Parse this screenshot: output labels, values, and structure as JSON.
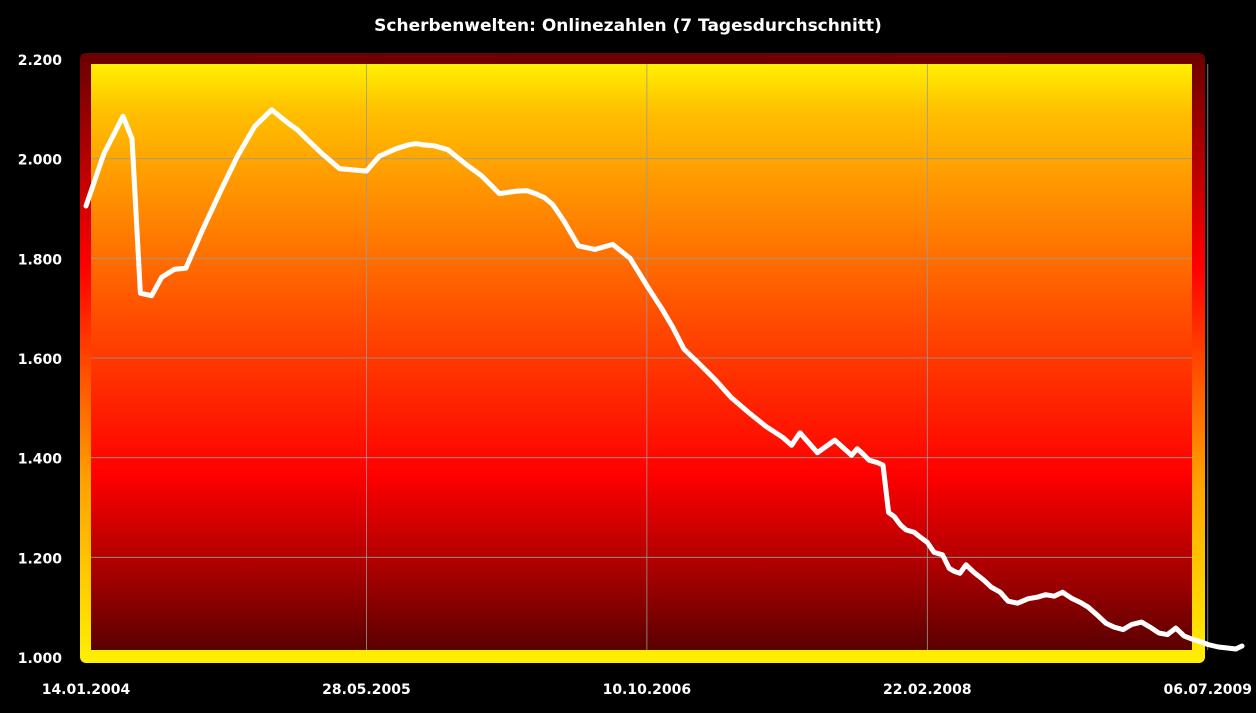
{
  "chart_data": {
    "type": "line",
    "title": "Scherbenwelten: Onlinezahlen (7 Tagesdurchschnitt)",
    "xlabel": "",
    "ylabel": "",
    "ylim": [
      1000,
      2200
    ],
    "y_ticks": [
      {
        "value": 1000,
        "label": "1.000"
      },
      {
        "value": 1200,
        "label": "1.200"
      },
      {
        "value": 1400,
        "label": "1.400"
      },
      {
        "value": 1600,
        "label": "1.600"
      },
      {
        "value": 1800,
        "label": "1.800"
      },
      {
        "value": 2000,
        "label": "2.000"
      },
      {
        "value": 2200,
        "label": "2.200"
      }
    ],
    "xlim": [
      "2004-01-14",
      "2009-09-30"
    ],
    "x_ticks": [
      {
        "value": "2004-01-14",
        "label": "14.01.2004"
      },
      {
        "value": "2005-05-28",
        "label": "28.05.2005"
      },
      {
        "value": "2006-10-10",
        "label": "10.10.2006"
      },
      {
        "value": "2008-02-22",
        "label": "22.02.2008"
      },
      {
        "value": "2009-07-06",
        "label": "06.07.2009"
      }
    ],
    "grid": true,
    "legend": "none",
    "colors": {
      "background": "#000000",
      "line": "#FFFFFF",
      "gradient_edge": "#FFF000",
      "gradient_mid": "#FF0000",
      "gradient_dark": "#5A0000",
      "gridline": "#9A9A9A",
      "text": "#FFFFFF"
    },
    "series": [
      {
        "x": [
          "2004-01-14",
          "2004-02-15",
          "2004-03-20",
          "2004-04-05",
          "2004-04-20",
          "2004-05-10",
          "2004-05-28",
          "2004-06-20",
          "2004-07-10",
          "2004-08-10",
          "2004-09-10",
          "2004-10-10",
          "2004-11-10",
          "2004-12-10",
          "2005-01-10",
          "2005-01-25",
          "2005-02-10",
          "2005-03-10",
          "2005-04-10",
          "2005-05-28",
          "2005-06-20",
          "2005-07-20",
          "2005-08-12",
          "2005-08-25",
          "2005-09-05",
          "2005-09-25",
          "2005-10-20",
          "2005-11-20",
          "2005-12-20",
          "2006-01-20",
          "2006-02-20",
          "2006-03-10",
          "2006-03-25",
          "2006-04-10",
          "2006-04-25",
          "2006-05-15",
          "2006-06-10",
          "2006-07-10",
          "2006-08-10",
          "2006-09-10",
          "2006-10-10",
          "2006-11-05",
          "2006-11-25",
          "2006-12-15",
          "2007-01-10",
          "2007-02-10",
          "2007-03-10",
          "2007-04-10",
          "2007-05-10",
          "2007-06-10",
          "2007-06-25",
          "2007-07-10",
          "2007-08-10",
          "2007-09-10",
          "2007-10-10",
          "2007-10-20",
          "2007-10-30",
          "2007-11-10",
          "2007-11-25",
          "2007-12-05",
          "2007-12-15",
          "2007-12-25",
          "2008-01-05",
          "2008-01-15",
          "2008-01-30",
          "2008-02-10",
          "2008-02-22",
          "2008-03-05",
          "2008-03-20",
          "2008-04-01",
          "2008-04-10",
          "2008-04-20",
          "2008-05-01",
          "2008-05-15",
          "2008-06-01",
          "2008-06-15",
          "2008-07-01",
          "2008-07-15",
          "2008-08-01",
          "2008-08-20",
          "2008-09-05",
          "2008-09-20",
          "2008-10-05",
          "2008-10-20",
          "2008-11-05",
          "2008-11-20",
          "2008-12-05",
          "2008-12-20",
          "2009-01-05",
          "2009-01-20",
          "2009-02-05",
          "2009-02-20",
          "2009-03-10",
          "2009-03-25",
          "2009-04-10",
          "2009-04-25",
          "2009-05-10",
          "2009-05-25",
          "2009-06-10",
          "2009-06-25",
          "2009-07-06",
          "2009-07-25",
          "2009-08-10",
          "2009-08-25",
          "2009-09-05"
        ],
        "values": [
          1905,
          2010,
          2085,
          2040,
          1730,
          1725,
          1762,
          1778,
          1780,
          1860,
          1935,
          2005,
          2065,
          2098,
          2070,
          2058,
          2040,
          2010,
          1980,
          1975,
          2005,
          2020,
          2028,
          2030,
          2028,
          2026,
          2018,
          1990,
          1965,
          1930,
          1935,
          1936,
          1930,
          1922,
          1908,
          1875,
          1825,
          1818,
          1828,
          1800,
          1745,
          1700,
          1662,
          1618,
          1590,
          1555,
          1520,
          1490,
          1463,
          1440,
          1425,
          1450,
          1410,
          1435,
          1405,
          1418,
          1408,
          1395,
          1390,
          1385,
          1290,
          1282,
          1265,
          1255,
          1250,
          1240,
          1230,
          1210,
          1205,
          1178,
          1172,
          1168,
          1185,
          1170,
          1155,
          1140,
          1130,
          1112,
          1108,
          1117,
          1120,
          1125,
          1122,
          1130,
          1118,
          1110,
          1100,
          1085,
          1068,
          1060,
          1055,
          1065,
          1070,
          1060,
          1048,
          1045,
          1058,
          1042,
          1035,
          1030,
          1025,
          1020,
          1018,
          1016,
          1022
        ]
      }
    ]
  }
}
